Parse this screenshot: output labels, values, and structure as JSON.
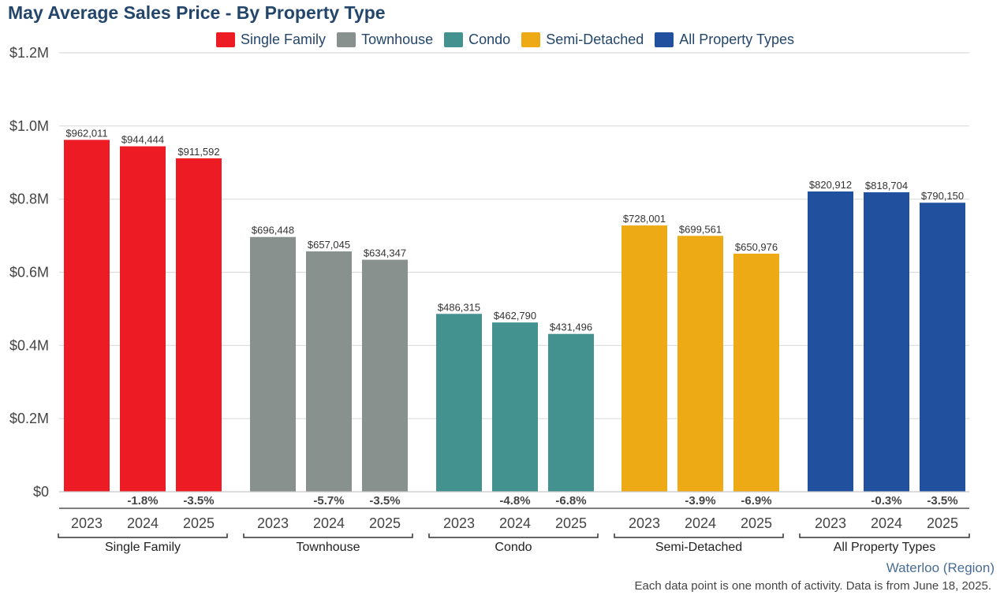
{
  "colors": {
    "title": "#24466b",
    "grid": "#dcdcdc",
    "axis": "#555555",
    "tick_text": "#444444",
    "region": "#4a6d95"
  },
  "chart_data": {
    "type": "bar",
    "title": "May Average Sales Price - By Property Type",
    "ylim": [
      0,
      1200000
    ],
    "yticks": [
      0,
      200000,
      400000,
      600000,
      800000,
      1000000,
      1200000
    ],
    "ytick_labels": [
      "$0",
      "$0.2M",
      "$0.4M",
      "$0.6M",
      "$0.8M",
      "$1.0M",
      "$1.2M"
    ],
    "grid": true,
    "legend_position": "top-center",
    "years": [
      "2023",
      "2024",
      "2025"
    ],
    "series": [
      {
        "name": "Single Family",
        "color": "#ed1c24",
        "values": [
          962011,
          944444,
          911592
        ],
        "value_labels": [
          "$962,011",
          "$944,444",
          "$911,592"
        ],
        "changes": [
          "",
          "-1.8%",
          "-3.5%"
        ]
      },
      {
        "name": "Townhouse",
        "color": "#89918f",
        "values": [
          696448,
          657045,
          634347
        ],
        "value_labels": [
          "$696,448",
          "$657,045",
          "$634,347"
        ],
        "changes": [
          "",
          "-5.7%",
          "-3.5%"
        ]
      },
      {
        "name": "Condo",
        "color": "#43928f",
        "values": [
          486315,
          462790,
          431496
        ],
        "value_labels": [
          "$486,315",
          "$462,790",
          "$431,496"
        ],
        "changes": [
          "",
          "-4.8%",
          "-6.8%"
        ]
      },
      {
        "name": "Semi-Detached",
        "color": "#eeaa14",
        "values": [
          728001,
          699561,
          650976
        ],
        "value_labels": [
          "$728,001",
          "$699,561",
          "$650,976"
        ],
        "changes": [
          "",
          "-3.9%",
          "-6.9%"
        ]
      },
      {
        "name": "All Property Types",
        "color": "#20509e",
        "values": [
          820912,
          818704,
          790150
        ],
        "value_labels": [
          "$820,912",
          "$818,704",
          "$790,150"
        ],
        "changes": [
          "",
          "-0.3%",
          "-3.5%"
        ]
      }
    ]
  },
  "region": "Waterloo (Region)",
  "footnote": "Each data point is one month of activity. Data is from June 18, 2025."
}
